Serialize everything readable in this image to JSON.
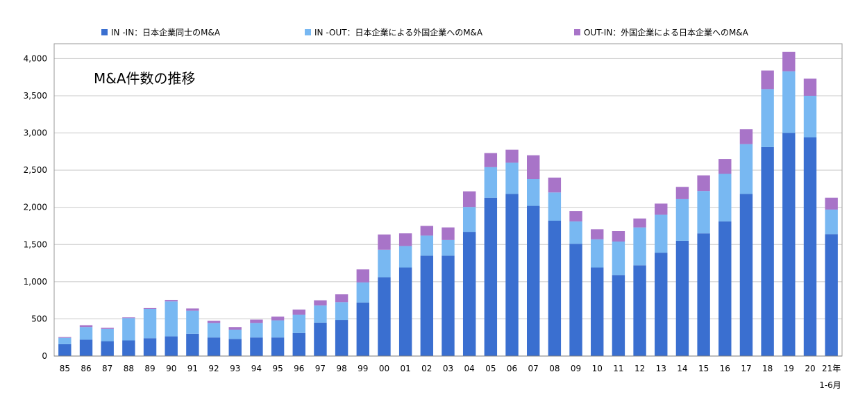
{
  "chart_data": {
    "type": "bar",
    "stacked": true,
    "title": "M&A件数の推移",
    "categories": [
      "85",
      "86",
      "87",
      "88",
      "89",
      "90",
      "91",
      "92",
      "93",
      "94",
      "95",
      "96",
      "97",
      "98",
      "99",
      "00",
      "01",
      "02",
      "03",
      "04",
      "05",
      "06",
      "07",
      "08",
      "09",
      "10",
      "11",
      "12",
      "13",
      "14",
      "15",
      "16",
      "17",
      "18",
      "19",
      "20",
      "21年"
    ],
    "x_sublabel": "1-6月",
    "ylim": [
      0,
      4000
    ],
    "yticks": [
      0,
      500,
      1000,
      1500,
      2000,
      2500,
      3000,
      3500,
      4000
    ],
    "ytick_labels": [
      "0",
      "500",
      "1,000",
      "1,500",
      "2,000",
      "2,500",
      "3,000",
      "3,500",
      "4,000"
    ],
    "grid": true,
    "legend_position": "top",
    "series": [
      {
        "name": "IN -IN：日本企業同士のM&A",
        "color": "#3a6fd0",
        "values": [
          160,
          220,
          200,
          210,
          240,
          265,
          300,
          250,
          230,
          250,
          250,
          310,
          450,
          485,
          720,
          1060,
          1190,
          1350,
          1350,
          1670,
          2130,
          2180,
          2020,
          1820,
          1510,
          1190,
          1090,
          1220,
          1390,
          1550,
          1650,
          1810,
          2180,
          2810,
          3000,
          2940,
          1640
        ]
      },
      {
        "name": "IN -OUT：日本企業による外国企業へのM&A",
        "color": "#78b8f2",
        "values": [
          85,
          170,
          165,
          300,
          395,
          470,
          310,
          195,
          125,
          195,
          230,
          245,
          230,
          240,
          270,
          370,
          290,
          270,
          210,
          335,
          410,
          420,
          360,
          380,
          300,
          380,
          450,
          510,
          510,
          560,
          570,
          640,
          670,
          780,
          830,
          560,
          330
        ]
      },
      {
        "name": "OUT-IN：外国企業による日本企業へのM&A",
        "color": "#a874c8",
        "values": [
          10,
          25,
          15,
          10,
          10,
          20,
          30,
          30,
          35,
          45,
          50,
          70,
          70,
          105,
          175,
          205,
          170,
          130,
          170,
          210,
          190,
          175,
          320,
          200,
          140,
          135,
          140,
          120,
          150,
          165,
          210,
          200,
          200,
          250,
          260,
          230,
          160
        ]
      }
    ]
  }
}
